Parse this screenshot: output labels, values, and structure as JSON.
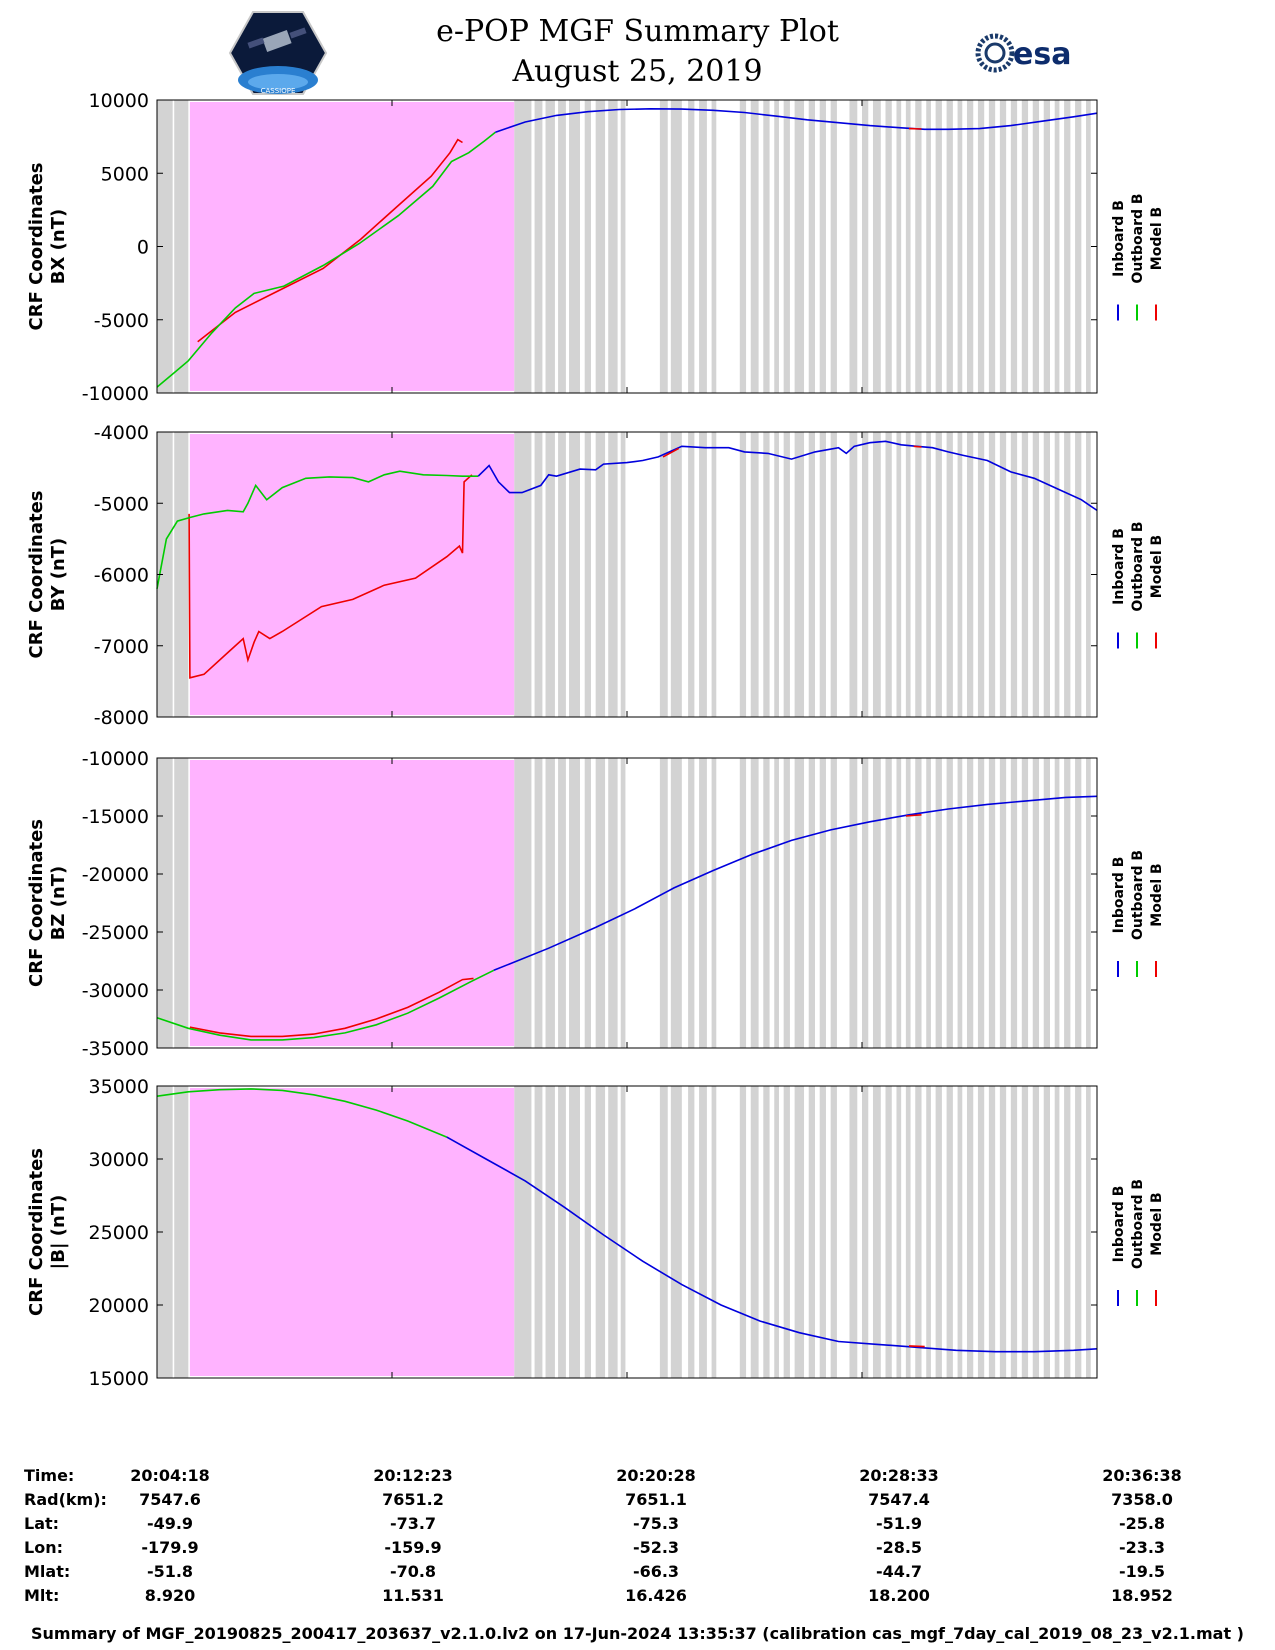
{
  "header": {
    "title_line1": "e-POP MGF Summary Plot",
    "title_line2": "August 25, 2019",
    "left_logo_text": "CASSIOPE",
    "right_logo_text": "esa"
  },
  "legend": {
    "labels": [
      "Inboard B",
      "Outboard B",
      "Model B"
    ],
    "colors": {
      "inboard": "#0000dd",
      "outboard": "#00cc00",
      "model": "#ee0000"
    }
  },
  "colors": {
    "shade_gray": "#d3d3d3",
    "shade_magenta": "#ffb3ff"
  },
  "chart_data": [
    {
      "type": "line",
      "id": "bx",
      "ylabel_line1": "CRF Coordinates",
      "ylabel_line2": "BX (nT)",
      "ylim": [
        -10000,
        10000
      ],
      "yticks": [
        "10000",
        "5000",
        "0",
        "-5000",
        "-10000"
      ],
      "ytick_values": [
        10000,
        5000,
        0,
        -5000,
        -10000
      ],
      "series": [
        {
          "name": "Model B",
          "x": [
            0,
            1.9,
            2.6,
            5,
            7.8,
            10.6,
            13,
            15.4,
            17.5,
            18.7,
            19.2,
            19.5
          ],
          "y": [
            null,
            null,
            -6500,
            -4500,
            -3000,
            -1500,
            500,
            2800,
            4800,
            6400,
            7300,
            7100
          ]
        },
        {
          "name": "Outboard B",
          "x": [
            0,
            1,
            2,
            3.5,
            5,
            6.2,
            8.1,
            10.6,
            12.9,
            15.4,
            17.6,
            18.8,
            19.9,
            20.9,
            21.6
          ],
          "y": [
            -9600,
            -8700,
            -7800,
            -5900,
            -4200,
            -3200,
            -2700,
            -1300,
            200,
            2100,
            4100,
            5800,
            6400,
            7200,
            7800
          ]
        },
        {
          "name": "Inboard B",
          "x": [
            21.6,
            23.5,
            25.5,
            27.5,
            29.5,
            31.5,
            33.5,
            35.5,
            37.5,
            39.5,
            41.5,
            43.5,
            45.5,
            47.5,
            49,
            50.5,
            52.5,
            54.5,
            56.5,
            58.5,
            60
          ],
          "y": [
            7800,
            8500,
            8950,
            9200,
            9350,
            9400,
            9380,
            9300,
            9150,
            8900,
            8650,
            8450,
            8250,
            8100,
            8000,
            8000,
            8050,
            8250,
            8550,
            8850,
            9100
          ]
        },
        {
          "name": "Model B overlay",
          "x": [
            48,
            48.8
          ],
          "y": [
            8050,
            8020
          ]
        }
      ]
    },
    {
      "type": "line",
      "id": "by",
      "ylabel_line1": "CRF Coordinates",
      "ylabel_line2": "BY (nT)",
      "ylim": [
        -8000,
        -4000
      ],
      "yticks": [
        "-4000",
        "-5000",
        "-6000",
        "-7000",
        "-8000"
      ],
      "ytick_values": [
        -4000,
        -5000,
        -6000,
        -7000,
        -8000
      ],
      "series": [
        {
          "name": "Model B",
          "x": [
            2.05,
            2.1,
            3,
            4.5,
            5.5,
            5.8,
            6.2,
            6.5,
            7.2,
            8,
            10.5,
            12.5,
            14.5,
            16.5,
            18.5,
            19.3,
            19.5,
            19.6,
            20.1
          ],
          "y": [
            -5150,
            -7450,
            -7400,
            -7100,
            -6900,
            -7200,
            -6950,
            -6800,
            -6900,
            -6800,
            -6450,
            -6350,
            -6150,
            -6050,
            -5750,
            -5600,
            -5700,
            -4700,
            -4600
          ]
        },
        {
          "name": "Outboard B",
          "x": [
            0,
            0.6,
            1.3,
            2.1,
            3,
            4.5,
            5.5,
            5.8,
            6.3,
            7,
            8,
            9.5,
            11,
            12.5,
            13.5,
            14.5,
            15.5,
            17,
            18.5,
            19.5,
            20.5
          ],
          "y": [
            -6200,
            -5500,
            -5250,
            -5200,
            -5150,
            -5100,
            -5120,
            -5000,
            -4750,
            -4950,
            -4780,
            -4650,
            -4630,
            -4640,
            -4700,
            -4600,
            -4550,
            -4600,
            -4610,
            -4620,
            -4620
          ]
        },
        {
          "name": "Inboard B",
          "x": [
            20.5,
            21.2,
            21.8,
            22.5,
            23.3,
            24.5,
            25,
            25.5,
            27,
            28,
            28.5,
            30,
            31,
            32,
            33.5,
            35,
            36.5,
            37.5,
            39,
            40.5,
            42,
            43.5,
            44,
            44.5,
            45.5,
            46.5,
            47.5,
            48.5,
            49.5,
            50.5,
            51.5,
            53,
            54.5,
            56,
            57.5,
            59,
            60
          ],
          "y": [
            -4620,
            -4470,
            -4700,
            -4850,
            -4850,
            -4750,
            -4600,
            -4620,
            -4520,
            -4530,
            -4450,
            -4430,
            -4400,
            -4350,
            -4200,
            -4220,
            -4220,
            -4280,
            -4300,
            -4380,
            -4280,
            -4220,
            -4300,
            -4200,
            -4150,
            -4130,
            -4180,
            -4200,
            -4220,
            -4280,
            -4330,
            -4400,
            -4560,
            -4650,
            -4800,
            -4950,
            -5100
          ]
        },
        {
          "name": "Model B overlay",
          "x": [
            32.3,
            33.3
          ],
          "y": [
            -4350,
            -4230
          ]
        },
        {
          "name": "Model B overlay 2",
          "x": [
            48.3,
            48.8
          ],
          "y": [
            -4200,
            -4210
          ]
        }
      ]
    },
    {
      "type": "line",
      "id": "bz",
      "ylabel_line1": "CRF Coordinates",
      "ylabel_line2": "BZ (nT)",
      "ylim": [
        -35000,
        -10000
      ],
      "yticks": [
        "-10000",
        "-15000",
        "-20000",
        "-25000",
        "-30000",
        "-35000"
      ],
      "ytick_values": [
        -10000,
        -15000,
        -20000,
        -25000,
        -30000,
        -35000
      ],
      "series": [
        {
          "name": "Model B",
          "x": [
            2.1,
            4,
            6,
            8,
            10,
            12,
            14,
            16,
            18,
            19.5,
            20.2
          ],
          "y": [
            -33200,
            -33700,
            -34000,
            -34000,
            -33800,
            -33300,
            -32500,
            -31500,
            -30200,
            -29100,
            -29000
          ]
        },
        {
          "name": "Outboard B",
          "x": [
            0,
            2,
            4,
            6,
            8,
            10,
            12,
            14,
            16,
            18,
            20,
            21.5
          ],
          "y": [
            -32400,
            -33300,
            -33900,
            -34300,
            -34300,
            -34100,
            -33700,
            -33000,
            -32000,
            -30700,
            -29300,
            -28300
          ]
        },
        {
          "name": "Inboard B",
          "x": [
            21.5,
            25,
            28,
            30.5,
            33,
            35.5,
            38,
            40.5,
            43,
            45.5,
            48,
            50.5,
            53,
            55.5,
            58,
            60
          ],
          "y": [
            -28300,
            -26400,
            -24600,
            -23000,
            -21200,
            -19700,
            -18300,
            -17100,
            -16200,
            -15500,
            -14900,
            -14400,
            -14000,
            -13700,
            -13400,
            -13300
          ]
        },
        {
          "name": "Model B overlay",
          "x": [
            47.8,
            48.8
          ],
          "y": [
            -15000,
            -14900
          ]
        }
      ]
    },
    {
      "type": "line",
      "id": "bmag",
      "ylabel_line1": "CRF Coordinates",
      "ylabel_line2": "|B| (nT)",
      "ylim": [
        15000,
        35000
      ],
      "yticks": [
        "35000",
        "30000",
        "25000",
        "20000",
        "15000"
      ],
      "ytick_values": [
        35000,
        30000,
        25000,
        20000,
        15000
      ],
      "series": [
        {
          "name": "Outboard B",
          "x": [
            0,
            2,
            4,
            6,
            8,
            10,
            12,
            14,
            16,
            18.5
          ],
          "y": [
            34300,
            34600,
            34750,
            34800,
            34700,
            34400,
            33950,
            33350,
            32600,
            31500
          ]
        },
        {
          "name": "Inboard B",
          "x": [
            18.5,
            21,
            23.5,
            26,
            28.5,
            31,
            33.5,
            36,
            38.5,
            41,
            43.5,
            46,
            48.5,
            51,
            53.5,
            56,
            58.5,
            60
          ],
          "y": [
            31500,
            30000,
            28500,
            26700,
            24800,
            23000,
            21400,
            20000,
            18900,
            18100,
            17500,
            17300,
            17100,
            16900,
            16800,
            16800,
            16900,
            17000
          ]
        },
        {
          "name": "Model B overlay",
          "x": [
            48,
            49
          ],
          "y": [
            17200,
            17150
          ]
        }
      ]
    }
  ],
  "time_axis": {
    "x_range_minutes": [
      0,
      60
    ],
    "tick_minutes": [
      0,
      15,
      30,
      45,
      60
    ]
  },
  "shading": {
    "magenta_span_minutes": [
      2.1,
      22.8
    ],
    "gray_bands_minutes": [
      [
        0,
        1.0
      ],
      [
        1.1,
        2.0
      ],
      [
        22.8,
        23.9
      ],
      [
        24.1,
        24.6
      ],
      [
        24.8,
        25.4
      ],
      [
        25.6,
        26.1
      ],
      [
        26.3,
        27.0
      ],
      [
        27.3,
        27.7
      ],
      [
        28.0,
        28.6
      ],
      [
        28.8,
        29.4
      ],
      [
        29.6,
        29.9
      ],
      [
        32.1,
        32.6
      ],
      [
        32.8,
        33.5
      ],
      [
        33.9,
        34.3
      ],
      [
        34.6,
        35.1
      ],
      [
        35.4,
        35.7
      ],
      [
        37.2,
        37.6
      ],
      [
        37.9,
        38.4
      ],
      [
        38.7,
        39.1
      ],
      [
        39.4,
        39.7
      ],
      [
        40.0,
        40.4
      ],
      [
        40.7,
        41.3
      ],
      [
        41.6,
        42.0
      ],
      [
        42.3,
        42.7
      ],
      [
        43.0,
        43.4
      ],
      [
        44.2,
        44.7
      ],
      [
        45.0,
        45.4
      ],
      [
        45.7,
        46.2
      ],
      [
        46.5,
        46.9
      ],
      [
        47.2,
        47.5
      ],
      [
        47.8,
        48.1
      ],
      [
        48.4,
        48.8
      ],
      [
        49.1,
        49.4
      ],
      [
        49.7,
        50.1
      ],
      [
        50.4,
        50.8
      ],
      [
        51.1,
        51.4
      ],
      [
        51.7,
        52.1
      ],
      [
        52.4,
        52.8
      ],
      [
        53.1,
        53.5
      ],
      [
        53.8,
        54.2
      ],
      [
        54.5,
        54.9
      ],
      [
        55.2,
        55.6
      ],
      [
        55.9,
        56.3
      ],
      [
        56.6,
        57.0
      ],
      [
        57.3,
        57.6
      ],
      [
        57.9,
        58.3
      ],
      [
        58.6,
        59.0
      ],
      [
        59.3,
        59.6
      ]
    ]
  },
  "ephemeris": {
    "labels": [
      "Time:",
      "Rad(km):",
      "Lat:",
      "Lon:",
      "Mlat:",
      "Mlt:"
    ],
    "columns": [
      [
        "20:04:18",
        "7547.6",
        "-49.9",
        "-179.9",
        "-51.8",
        "8.920"
      ],
      [
        "20:12:23",
        "7651.2",
        "-73.7",
        "-159.9",
        "-70.8",
        "11.531"
      ],
      [
        "20:20:28",
        "7651.1",
        "-75.3",
        "-52.3",
        "-66.3",
        "16.426"
      ],
      [
        "20:28:33",
        "7547.4",
        "-51.9",
        "-28.5",
        "-44.7",
        "18.200"
      ],
      [
        "20:36:38",
        "7358.0",
        "-25.8",
        "-23.3",
        "-19.5",
        "18.952"
      ]
    ]
  },
  "footer": "Summary of MGF_20190825_200417_203637_v2.1.0.lv2 on 17-Jun-2024 13:35:37 (calibration cas_mgf_7day_cal_2019_08_23_v2.1.mat )"
}
